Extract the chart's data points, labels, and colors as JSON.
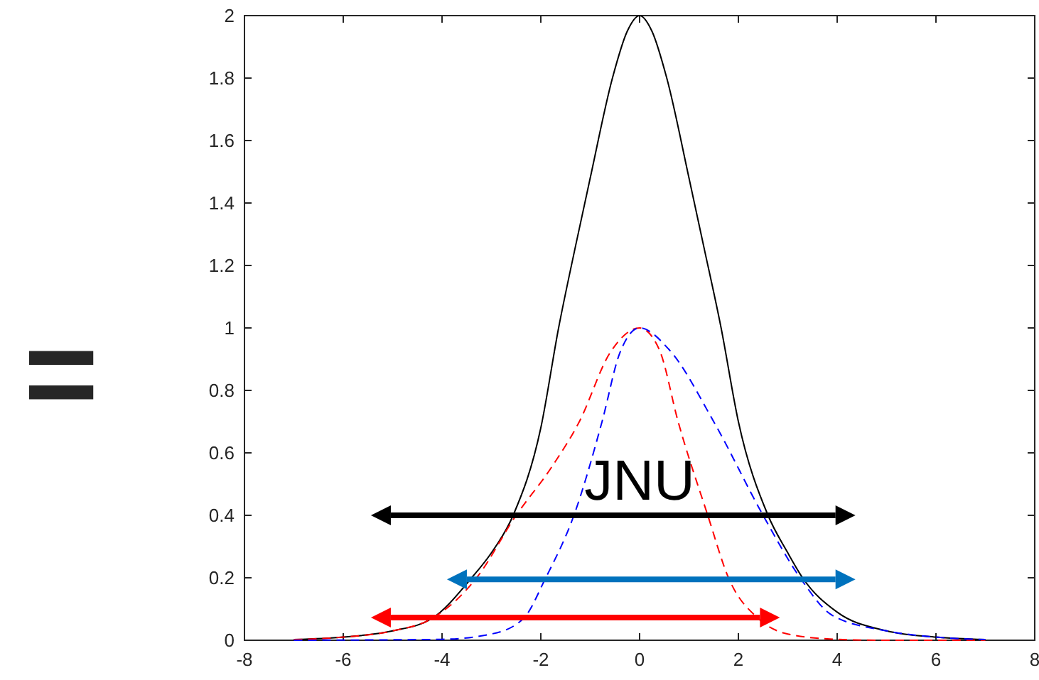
{
  "chart_data": {
    "type": "line",
    "xlim": [
      -8,
      8
    ],
    "ylim": [
      0,
      2
    ],
    "xticks": [
      -8,
      -6,
      -4,
      -2,
      0,
      2,
      4,
      6,
      8
    ],
    "yticks": [
      0,
      0.2,
      0.4,
      0.6,
      0.8,
      1,
      1.2,
      1.4,
      1.6,
      1.8,
      2
    ],
    "grid": false,
    "marker": "none",
    "annotations": [
      "JNU",
      "="
    ],
    "series": [
      {
        "color": "#000000",
        "line_style": "solid",
        "x": [
          -7,
          -6,
          -5,
          -4.2,
          -3.4,
          -3,
          -2.56,
          -2,
          -1.64,
          -1.3,
          -1,
          -0.55,
          -0.25,
          0,
          0.25,
          0.55,
          1,
          1.3,
          1.65,
          2,
          2.6,
          3,
          3.3,
          4,
          5,
          6,
          7
        ],
        "values": [
          0.002,
          0.01,
          0.03,
          0.07,
          0.2,
          0.28,
          0.4,
          0.68,
          1,
          1.26,
          1.48,
          1.8,
          1.95,
          2,
          1.95,
          1.8,
          1.48,
          1.26,
          1,
          0.7,
          0.4,
          0.28,
          0.2,
          0.09,
          0.03,
          0.01,
          0.002
        ]
      },
      {
        "color": "#ff0000",
        "line_style": "dashed",
        "x": [
          -7,
          -6,
          -5,
          -4.2,
          -3.3,
          -2.5,
          -1.8,
          -1.22,
          -0.6,
          0,
          0.4,
          0.78,
          1.38,
          1.8,
          2.4,
          3,
          4,
          5,
          7
        ],
        "values": [
          0.002,
          0.01,
          0.03,
          0.07,
          0.2,
          0.4,
          0.55,
          0.7,
          0.92,
          1,
          0.93,
          0.7,
          0.4,
          0.2,
          0.07,
          0.02,
          0.003,
          0,
          0
        ]
      },
      {
        "color": "#0000ff",
        "line_style": "dashed",
        "x": [
          -7,
          -4,
          -3,
          -2.35,
          -1.9,
          -1.33,
          -0.76,
          -0.4,
          0,
          0.6,
          1.5,
          2.5,
          3.25,
          3.9,
          5,
          6,
          7
        ],
        "values": [
          0,
          0.003,
          0.02,
          0.07,
          0.2,
          0.4,
          0.7,
          0.92,
          1,
          0.93,
          0.7,
          0.4,
          0.2,
          0.08,
          0.03,
          0.01,
          0.002
        ]
      }
    ]
  }
}
